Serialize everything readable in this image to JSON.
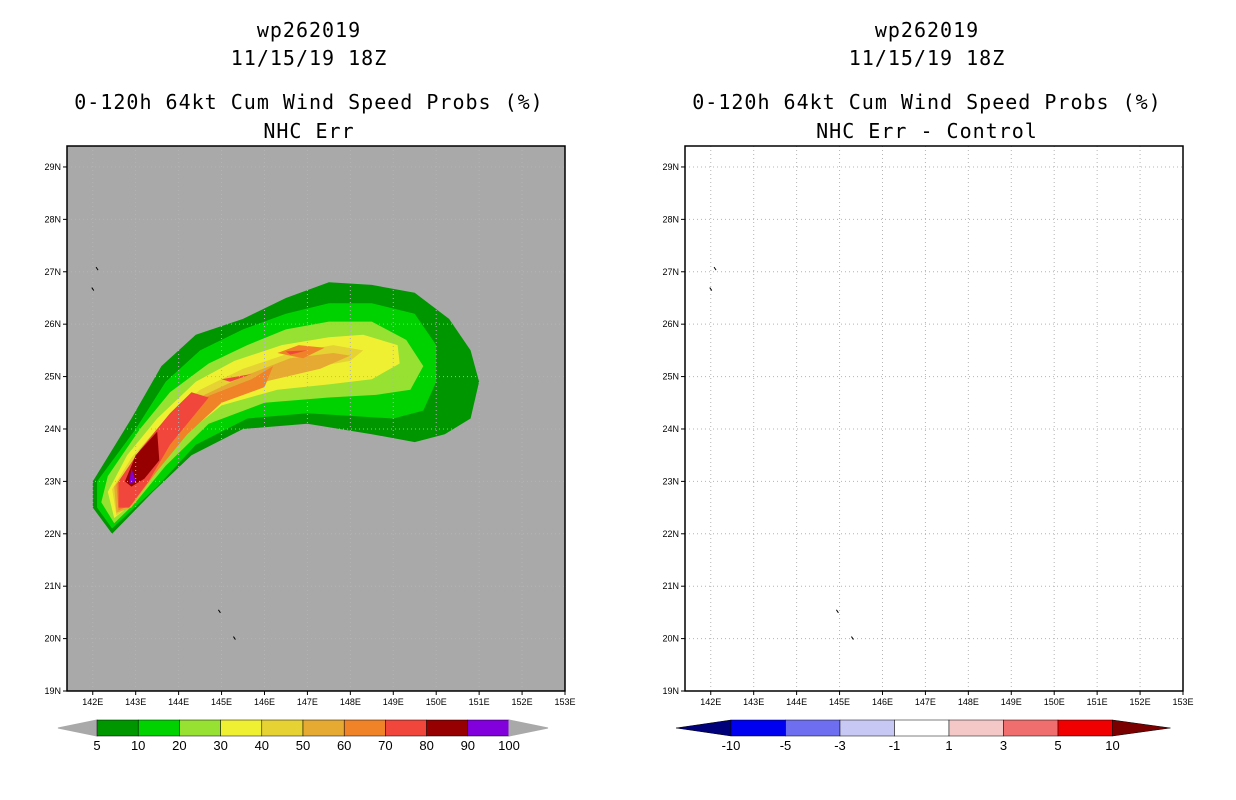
{
  "chart_data": [
    {
      "type": "filled-contour-map",
      "title_lines": [
        "wp262019",
        "11/15/19 18Z",
        "0-120h 64kt Cum Wind Speed Probs (%)",
        "NHC Err"
      ],
      "x_ticks": [
        "142E",
        "143E",
        "144E",
        "145E",
        "146E",
        "147E",
        "148E",
        "149E",
        "150E",
        "151E",
        "152E",
        "153E"
      ],
      "y_ticks": [
        "19N",
        "20N",
        "21N",
        "22N",
        "23N",
        "24N",
        "25N",
        "26N",
        "27N",
        "28N",
        "29N"
      ],
      "xlim": [
        141.4,
        153
      ],
      "ylim": [
        19,
        29.4
      ],
      "background": "#a9a9a9",
      "levels": [
        {
          "label": "5",
          "color": "#009600"
        },
        {
          "label": "10",
          "color": "#00d200"
        },
        {
          "label": "20",
          "color": "#96e132"
        },
        {
          "label": "30",
          "color": "#f0f032"
        },
        {
          "label": "40",
          "color": "#e6d232"
        },
        {
          "label": "50",
          "color": "#e6aa32"
        },
        {
          "label": "60",
          "color": "#f08228"
        },
        {
          "label": "70",
          "color": "#f0463c"
        },
        {
          "label": "80",
          "color": "#960000"
        },
        {
          "label": "90",
          "color": "#8200dc"
        },
        {
          "label": "100",
          "color": ""
        }
      ],
      "contours": [
        {
          "level": 5,
          "color": "#009600",
          "lonlat": [
            [
              142.45,
              22.0
            ],
            [
              142.0,
              22.5
            ],
            [
              142.0,
              23.0
            ],
            [
              142.9,
              24.2
            ],
            [
              143.6,
              25.2
            ],
            [
              144.4,
              25.8
            ],
            [
              145.5,
              26.1
            ],
            [
              146.5,
              26.5
            ],
            [
              147.5,
              26.8
            ],
            [
              148.5,
              26.75
            ],
            [
              149.5,
              26.6
            ],
            [
              150.3,
              26.1
            ],
            [
              150.8,
              25.5
            ],
            [
              151.0,
              24.9
            ],
            [
              150.8,
              24.2
            ],
            [
              150.2,
              23.9
            ],
            [
              149.5,
              23.75
            ],
            [
              148.5,
              23.9
            ],
            [
              147.0,
              24.1
            ],
            [
              145.5,
              24.0
            ],
            [
              144.3,
              23.5
            ],
            [
              143.4,
              22.8
            ]
          ]
        },
        {
          "level": 10,
          "color": "#00d200",
          "lonlat": [
            [
              142.45,
              22.1
            ],
            [
              142.1,
              22.5
            ],
            [
              142.1,
              23.0
            ],
            [
              143.0,
              24.0
            ],
            [
              143.7,
              24.9
            ],
            [
              144.5,
              25.5
            ],
            [
              145.5,
              25.9
            ],
            [
              146.5,
              26.2
            ],
            [
              147.5,
              26.4
            ],
            [
              148.5,
              26.4
            ],
            [
              149.5,
              26.2
            ],
            [
              150.0,
              25.6
            ],
            [
              150.0,
              24.9
            ],
            [
              149.7,
              24.35
            ],
            [
              149.0,
              24.2
            ],
            [
              148.0,
              24.25
            ],
            [
              147.0,
              24.3
            ],
            [
              145.6,
              24.2
            ],
            [
              144.4,
              23.7
            ],
            [
              143.5,
              22.9
            ]
          ]
        },
        {
          "level": 20,
          "color": "#96e132",
          "lonlat": [
            [
              142.5,
              22.2
            ],
            [
              142.2,
              22.6
            ],
            [
              142.35,
              23.1
            ],
            [
              143.1,
              24.0
            ],
            [
              143.8,
              24.7
            ],
            [
              144.7,
              25.25
            ],
            [
              145.6,
              25.6
            ],
            [
              146.5,
              25.9
            ],
            [
              147.5,
              26.05
            ],
            [
              148.5,
              26.05
            ],
            [
              149.3,
              25.7
            ],
            [
              149.7,
              25.2
            ],
            [
              149.4,
              24.75
            ],
            [
              148.6,
              24.65
            ],
            [
              147.5,
              24.6
            ],
            [
              146.0,
              24.5
            ],
            [
              144.7,
              24.1
            ],
            [
              143.7,
              23.3
            ],
            [
              143.0,
              22.6
            ]
          ]
        },
        {
          "level": 30,
          "color": "#f0f032",
          "lonlat": [
            [
              142.5,
              22.3
            ],
            [
              142.35,
              22.8
            ],
            [
              142.8,
              23.5
            ],
            [
              143.5,
              24.2
            ],
            [
              144.4,
              24.9
            ],
            [
              145.3,
              25.3
            ],
            [
              146.4,
              25.6
            ],
            [
              147.5,
              25.75
            ],
            [
              148.3,
              25.8
            ],
            [
              149.1,
              25.6
            ],
            [
              149.15,
              25.25
            ],
            [
              148.5,
              24.95
            ],
            [
              147.5,
              24.85
            ],
            [
              146.3,
              24.75
            ],
            [
              145.0,
              24.45
            ],
            [
              144.0,
              23.8
            ],
            [
              143.3,
              23.1
            ],
            [
              142.8,
              22.5
            ]
          ]
        },
        {
          "level": 40,
          "color": "#e6d232",
          "lonlat": [
            [
              142.55,
              22.35
            ],
            [
              142.45,
              22.85
            ],
            [
              142.9,
              23.45
            ],
            [
              143.6,
              24.1
            ],
            [
              144.5,
              24.75
            ],
            [
              145.5,
              25.15
            ],
            [
              146.6,
              25.45
            ],
            [
              147.6,
              25.6
            ],
            [
              148.3,
              25.5
            ],
            [
              148.0,
              25.3
            ],
            [
              147.3,
              25.2
            ],
            [
              146.0,
              25.0
            ],
            [
              144.9,
              24.65
            ],
            [
              144.1,
              24.0
            ],
            [
              143.4,
              23.2
            ],
            [
              142.8,
              22.5
            ]
          ]
        },
        {
          "level": 50,
          "color": "#e6aa32",
          "lonlat": [
            [
              142.55,
              22.4
            ],
            [
              142.5,
              22.9
            ],
            [
              143.0,
              23.4
            ],
            [
              143.7,
              24.05
            ],
            [
              144.6,
              24.65
            ],
            [
              145.5,
              25.0
            ],
            [
              146.6,
              25.35
            ],
            [
              147.6,
              25.45
            ],
            [
              148.0,
              25.4
            ],
            [
              147.3,
              25.15
            ],
            [
              146.0,
              24.9
            ],
            [
              144.9,
              24.5
            ],
            [
              144.2,
              23.95
            ],
            [
              143.5,
              23.2
            ],
            [
              142.9,
              22.5
            ]
          ]
        },
        {
          "level": 60,
          "color": "#f08228",
          "lonlat": [
            [
              142.6,
              22.45
            ],
            [
              142.55,
              22.95
            ],
            [
              143.1,
              23.5
            ],
            [
              143.8,
              24.15
            ],
            [
              144.6,
              24.6
            ],
            [
              145.7,
              24.95
            ],
            [
              146.2,
              25.2
            ],
            [
              146.0,
              24.8
            ],
            [
              145.0,
              24.5
            ],
            [
              144.2,
              23.9
            ],
            [
              143.5,
              23.2
            ],
            [
              142.9,
              22.55
            ]
          ]
        },
        {
          "level": 60,
          "color": "#f08228",
          "lonlat": [
            [
              146.3,
              25.45
            ],
            [
              146.8,
              25.6
            ],
            [
              147.4,
              25.55
            ],
            [
              146.9,
              25.35
            ]
          ]
        },
        {
          "level": 70,
          "color": "#f0463c",
          "lonlat": [
            [
              142.6,
              22.5
            ],
            [
              142.6,
              23.0
            ],
            [
              143.1,
              23.6
            ],
            [
              143.8,
              24.3
            ],
            [
              144.3,
              24.7
            ],
            [
              144.7,
              24.6
            ],
            [
              144.3,
              24.2
            ],
            [
              143.8,
              23.7
            ],
            [
              143.3,
              23.0
            ],
            [
              142.85,
              22.5
            ]
          ]
        },
        {
          "level": 70,
          "color": "#f0463c",
          "lonlat": [
            [
              145.0,
              24.95
            ],
            [
              145.7,
              25.05
            ],
            [
              145.2,
              24.9
            ]
          ]
        },
        {
          "level": 70,
          "color": "#f0463c",
          "lonlat": [
            [
              146.5,
              25.48
            ],
            [
              147.0,
              25.5
            ],
            [
              146.6,
              25.42
            ]
          ]
        },
        {
          "level": 80,
          "color": "#960000",
          "lonlat": [
            [
              142.75,
              23.0
            ],
            [
              143.0,
              23.5
            ],
            [
              143.5,
              23.95
            ],
            [
              143.55,
              23.4
            ],
            [
              143.2,
              23.05
            ],
            [
              142.9,
              22.9
            ]
          ]
        },
        {
          "level": 90,
          "color": "#8200dc",
          "lonlat": [
            [
              142.85,
              22.95
            ],
            [
              142.9,
              23.25
            ],
            [
              143.0,
              23.0
            ]
          ]
        }
      ],
      "islands": [
        [
          142.1,
          27.07
        ],
        [
          142.0,
          26.68
        ],
        [
          144.95,
          20.53
        ],
        [
          145.3,
          20.02
        ]
      ]
    },
    {
      "type": "filled-contour-map",
      "title_lines": [
        "wp262019",
        "11/15/19 18Z",
        "0-120h 64kt Cum Wind Speed Probs (%)",
        "NHC Err - Control"
      ],
      "x_ticks": [
        "142E",
        "143E",
        "144E",
        "145E",
        "146E",
        "147E",
        "148E",
        "149E",
        "150E",
        "151E",
        "152E",
        "153E"
      ],
      "y_ticks": [
        "19N",
        "20N",
        "21N",
        "22N",
        "23N",
        "24N",
        "25N",
        "26N",
        "27N",
        "28N",
        "29N"
      ],
      "xlim": [
        141.4,
        153
      ],
      "ylim": [
        19,
        29.4
      ],
      "background": "#ffffff",
      "levels": [
        {
          "label": "",
          "color": "#00007a"
        },
        {
          "label": "-10",
          "color": "#0000f0"
        },
        {
          "label": "-5",
          "color": "#6e6ef0"
        },
        {
          "label": "-3",
          "color": "#c8c8f5"
        },
        {
          "label": "-1",
          "color": "#ffffff"
        },
        {
          "label": "1",
          "color": "#f5c8c8"
        },
        {
          "label": "3",
          "color": "#f06e6e"
        },
        {
          "label": "5",
          "color": "#f00000"
        },
        {
          "label": "10",
          "color": "#7a0000"
        }
      ],
      "contours": [],
      "islands": [
        [
          142.1,
          27.07
        ],
        [
          142.0,
          26.68
        ],
        [
          144.95,
          20.53
        ],
        [
          145.3,
          20.02
        ]
      ]
    }
  ]
}
